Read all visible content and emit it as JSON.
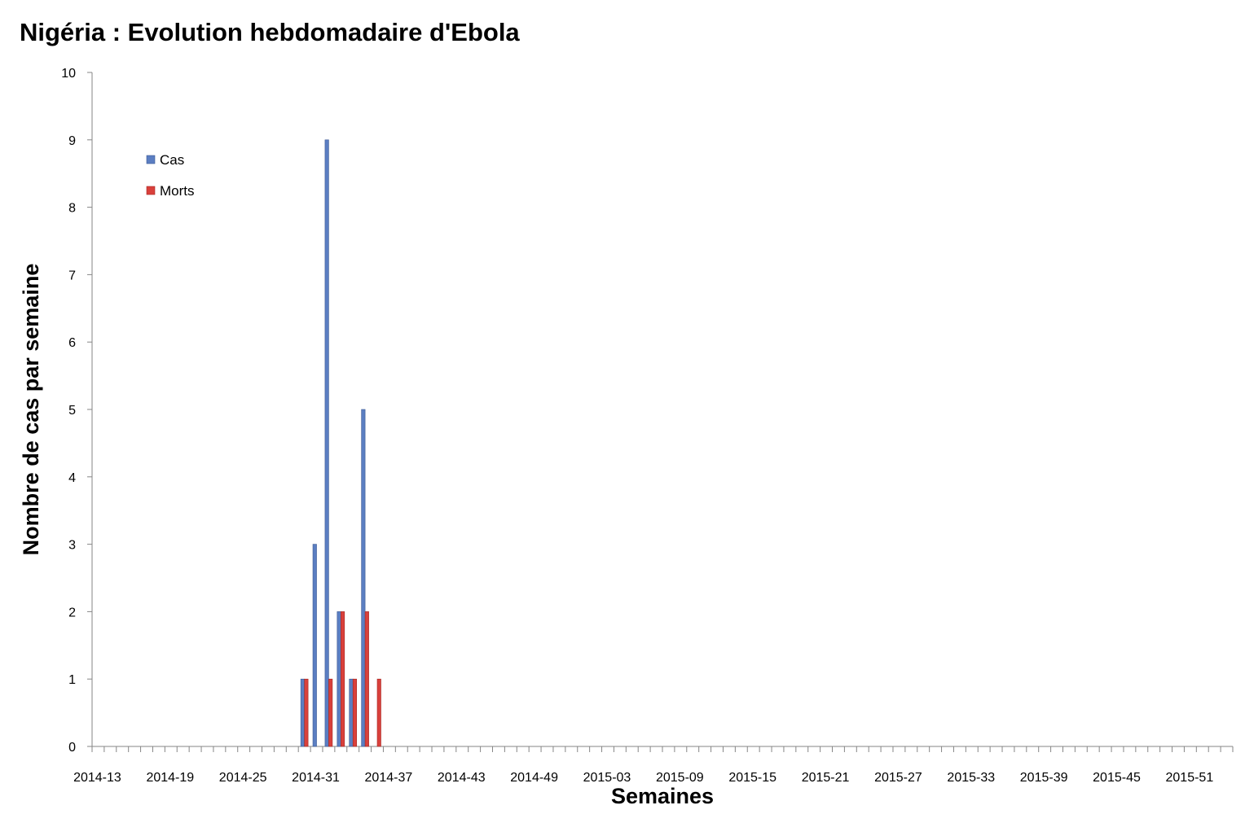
{
  "chart_data": {
    "type": "bar",
    "title": "Nigéria : Evolution hebdomadaire d'Ebola",
    "xlabel": "Semaines",
    "ylabel": "Nombre de cas par semaine",
    "ylim": [
      0,
      10
    ],
    "yticks": [
      0,
      1,
      2,
      3,
      4,
      5,
      6,
      7,
      8,
      9,
      10
    ],
    "x_start_week": "2014-13",
    "x_week_count": 94,
    "xtick_labels": [
      "2014-13",
      "2014-19",
      "2014-25",
      "2014-31",
      "2014-37",
      "2014-43",
      "2014-49",
      "2015-03",
      "2015-09",
      "2015-15",
      "2015-21",
      "2015-27",
      "2015-33",
      "2015-39",
      "2015-45",
      "2015-51"
    ],
    "legend": {
      "position": "top-left"
    },
    "series": [
      {
        "name": "Cas",
        "color": "#5B7EC2",
        "points": [
          {
            "week": "2014-30",
            "value": 1
          },
          {
            "week": "2014-31",
            "value": 3
          },
          {
            "week": "2014-32",
            "value": 9
          },
          {
            "week": "2014-33",
            "value": 2
          },
          {
            "week": "2014-34",
            "value": 1
          },
          {
            "week": "2014-35",
            "value": 5
          },
          {
            "week": "2014-36",
            "value": 0
          }
        ]
      },
      {
        "name": "Morts",
        "color": "#D9403B",
        "points": [
          {
            "week": "2014-30",
            "value": 1
          },
          {
            "week": "2014-31",
            "value": 0
          },
          {
            "week": "2014-32",
            "value": 1
          },
          {
            "week": "2014-33",
            "value": 2
          },
          {
            "week": "2014-34",
            "value": 1
          },
          {
            "week": "2014-35",
            "value": 2
          },
          {
            "week": "2014-36",
            "value": 1
          }
        ]
      }
    ]
  }
}
